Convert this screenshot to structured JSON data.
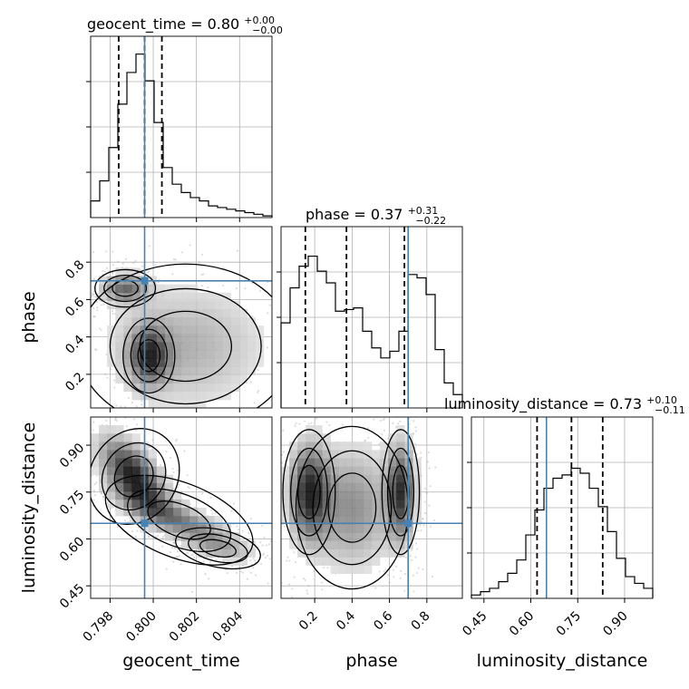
{
  "chart_data": {
    "type": "corner",
    "parameters": [
      "geocent_time",
      "phase",
      "luminosity_distance"
    ],
    "truths": {
      "geocent_time": 0.7996,
      "phase": 0.7,
      "luminosity_distance": 0.65
    },
    "ranges": {
      "geocent_time": [
        0.7971,
        0.8055
      ],
      "phase": [
        0.02,
        0.99
      ],
      "luminosity_distance": [
        0.41,
        0.99
      ]
    },
    "ticks": {
      "geocent_time": [
        0.798,
        0.8,
        0.802,
        0.804
      ],
      "phase": [
        0.2,
        0.4,
        0.6,
        0.8
      ],
      "luminosity_distance": [
        0.45,
        0.6,
        0.75,
        0.9
      ]
    },
    "tick_labels": {
      "geocent_time": [
        "0.798",
        "0.800",
        "0.802",
        "0.804"
      ],
      "phase": [
        "0.2",
        "0.4",
        "0.6",
        "0.8"
      ],
      "luminosity_distance": [
        "0.45",
        "0.60",
        "0.75",
        "0.90"
      ]
    },
    "titles": [
      {
        "param": "geocent_time",
        "prefix": "geocent_time = 0.80",
        "plus": "+0.00",
        "minus": "−0.00"
      },
      {
        "param": "phase",
        "prefix": "phase = 0.37",
        "plus": "+0.31",
        "minus": "−0.22"
      },
      {
        "param": "luminosity_distance",
        "prefix": "luminosity_distance = 0.73",
        "plus": "+0.10",
        "minus": "−0.11"
      }
    ],
    "quantiles": {
      "geocent_time": [
        0.7984,
        0.7996,
        0.8004
      ],
      "phase": [
        0.15,
        0.37,
        0.68
      ],
      "luminosity_distance": [
        0.62,
        0.73,
        0.83
      ]
    },
    "histograms": {
      "geocent_time": [
        0.1,
        0.22,
        0.42,
        0.68,
        0.87,
        0.98,
        0.82,
        0.57,
        0.3,
        0.2,
        0.15,
        0.12,
        0.1,
        0.07,
        0.06,
        0.05,
        0.04,
        0.03,
        0.02,
        0.01
      ],
      "phase": [
        0.51,
        0.72,
        0.85,
        0.91,
        0.82,
        0.75,
        0.58,
        0.59,
        0.6,
        0.46,
        0.36,
        0.3,
        0.34,
        0.46,
        0.8,
        0.78,
        0.68,
        0.35,
        0.15,
        0.08
      ],
      "luminosity_distance": [
        0.02,
        0.04,
        0.06,
        0.1,
        0.15,
        0.23,
        0.38,
        0.53,
        0.66,
        0.72,
        0.74,
        0.78,
        0.75,
        0.66,
        0.55,
        0.4,
        0.24,
        0.13,
        0.09,
        0.06
      ]
    }
  }
}
